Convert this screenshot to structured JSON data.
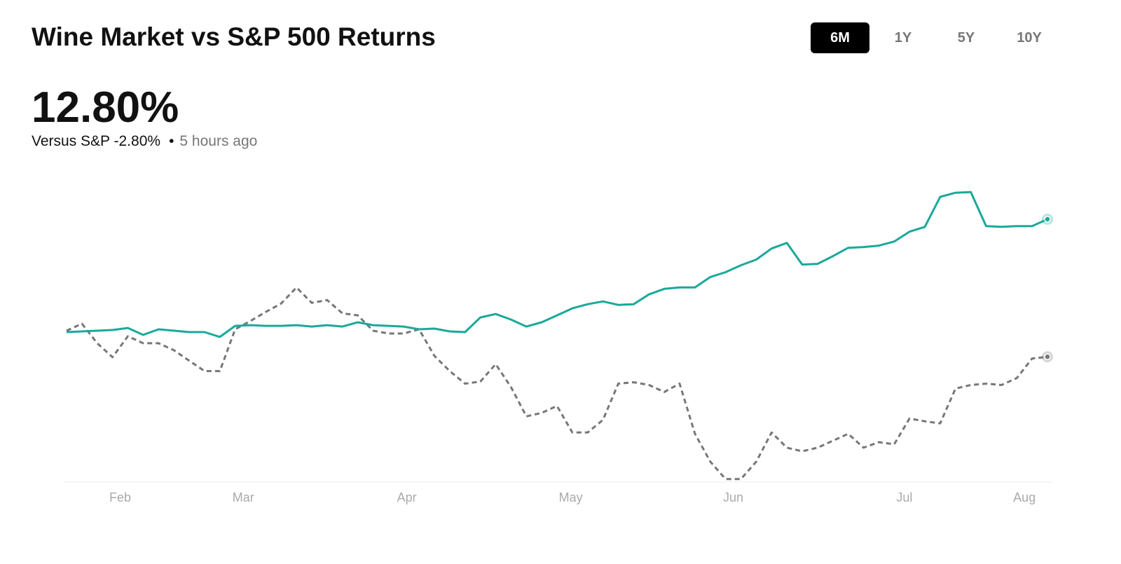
{
  "chart_data": {
    "type": "line",
    "title": "Wine Market vs S&P 500 Returns",
    "headline": "12.80%",
    "comparison": "Versus S&P -2.80%",
    "updated": "5 hours ago",
    "ranges": [
      "6M",
      "1Y",
      "5Y",
      "10Y"
    ],
    "x": [
      0,
      3,
      6,
      9,
      12,
      15,
      18,
      21,
      24,
      27,
      30,
      33,
      36,
      39,
      42,
      45,
      48,
      51,
      54,
      57,
      60,
      63,
      66,
      69,
      72,
      75,
      78,
      81,
      84,
      87,
      90,
      93,
      96,
      99,
      102,
      105,
      108,
      111,
      114,
      117,
      120,
      123,
      126,
      129,
      132,
      135,
      138,
      141,
      144,
      147,
      150,
      153,
      156,
      159,
      162,
      165,
      168,
      171,
      174,
      177,
      180,
      183,
      186,
      189,
      192
    ],
    "xlim": [
      0,
      192
    ],
    "xticks": [
      {
        "value": 10.5,
        "label": "Feb"
      },
      {
        "value": 34.6,
        "label": "Mar"
      },
      {
        "value": 66.6,
        "label": "Apr"
      },
      {
        "value": 98.7,
        "label": "May"
      },
      {
        "value": 130.5,
        "label": "Jun"
      },
      {
        "value": 164,
        "label": "Jul"
      },
      {
        "value": 187.5,
        "label": "Aug"
      }
    ],
    "ylim": [
      -17,
      17
    ],
    "series": [
      {
        "color": "#1aa99a",
        "style": "solid",
        "values": [
          0,
          0.08,
          0.16,
          0.24,
          0.47,
          -0.32,
          0.32,
          0.16,
          0,
          0,
          -0.55,
          0.71,
          0.79,
          0.71,
          0.71,
          0.79,
          0.63,
          0.79,
          0.63,
          1.11,
          0.79,
          0.71,
          0.63,
          0.32,
          0.4,
          0.08,
          0,
          1.66,
          2.05,
          1.42,
          0.63,
          1.11,
          1.9,
          2.69,
          3.16,
          3.48,
          3.08,
          3.16,
          4.27,
          4.9,
          5.06,
          5.06,
          6.24,
          6.79,
          7.58,
          8.22,
          9.48,
          10.11,
          7.66,
          7.74,
          8.61,
          9.56,
          9.64,
          9.8,
          10.27,
          11.38,
          11.93,
          15.33,
          15.8,
          15.88,
          12.01,
          11.93,
          12.01,
          12.01,
          12.8
        ]
      },
      {
        "color": "#777777",
        "style": "dashed",
        "values": [
          0.16,
          0.95,
          -1.26,
          -2.84,
          -0.47,
          -1.26,
          -1.26,
          -2.05,
          -3.24,
          -4.42,
          -4.42,
          0.32,
          1.26,
          2.29,
          3.24,
          5.06,
          3.32,
          3.63,
          2.13,
          1.9,
          0.16,
          -0.16,
          -0.16,
          0.32,
          -2.69,
          -4.42,
          -5.85,
          -5.61,
          -3.63,
          -6.24,
          -9.56,
          -9.16,
          -8.37,
          -11.38,
          -11.38,
          -9.95,
          -5.85,
          -5.69,
          -6.0,
          -6.79,
          -5.85,
          -11.53,
          -14.69,
          -16.67,
          -16.67,
          -14.69,
          -11.38,
          -13.11,
          -13.51,
          -13.11,
          -12.32,
          -11.53,
          -13.11,
          -12.48,
          -12.72,
          -9.8,
          -10.11,
          -10.35,
          -6.4,
          -6.0,
          -5.85,
          -6.0,
          -5.21,
          -3.0,
          -2.8
        ]
      }
    ]
  }
}
